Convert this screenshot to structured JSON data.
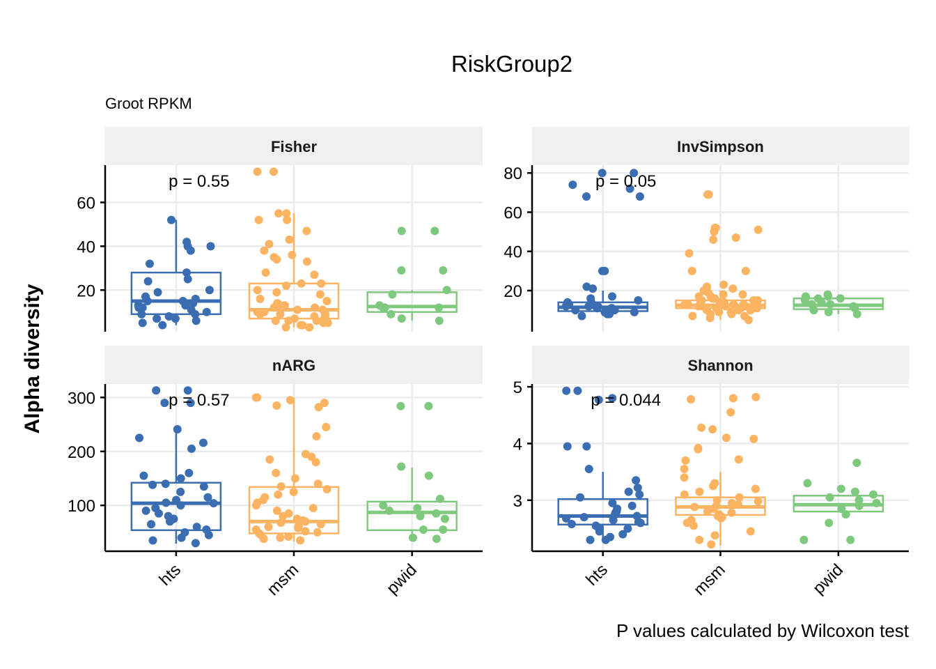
{
  "chart_data": {
    "type": "boxplot",
    "title": "RiskGroup2",
    "subtitle": "Groot RPKM",
    "caption": "P values calculated by Wilcoxon test",
    "ylabel": "Alpha diversity",
    "groups": [
      "hts",
      "msm",
      "pwid"
    ],
    "colors": {
      "hts": "#3b6db2",
      "msm": "#fdb462",
      "pwid": "#7fc97f"
    },
    "grid": true,
    "panels": [
      {
        "name": "Fisher",
        "pvalue_label": "p = 0.55",
        "ylim": [
          1,
          77
        ],
        "yticks": [
          20,
          40,
          60
        ],
        "boxes": {
          "hts": {
            "q1": 9,
            "median": 15,
            "q3": 28,
            "whisker_low": 4,
            "whisker_high": 52
          },
          "msm": {
            "q1": 7,
            "median": 11,
            "q3": 23,
            "whisker_low": 3,
            "whisker_high": 55
          },
          "pwid": {
            "q1": 10,
            "median": 12.5,
            "q3": 19,
            "whisker_low": 6,
            "whisker_high": 20
          }
        },
        "points": {
          "hts": [
            52,
            42,
            40,
            40,
            38,
            32,
            28,
            25,
            24,
            20,
            19,
            17,
            16,
            15,
            14,
            13,
            12,
            11,
            10,
            9,
            8,
            7,
            6,
            5,
            4,
            12,
            15,
            13,
            9,
            7
          ],
          "msm": [
            74,
            74,
            55,
            55,
            52,
            52,
            47,
            43,
            41,
            38,
            36,
            35,
            34,
            33,
            28,
            27,
            23,
            23,
            22,
            20,
            19,
            18,
            16,
            15,
            14,
            13,
            12,
            11,
            10,
            10,
            9,
            9,
            8,
            8,
            7,
            7,
            6,
            6,
            5,
            5,
            4,
            4,
            3,
            3,
            11,
            12,
            13,
            9,
            8,
            6
          ],
          "pwid": [
            47,
            47,
            29,
            29,
            20,
            18,
            13,
            12,
            12,
            12,
            9,
            7,
            6
          ]
        }
      },
      {
        "name": "InvSimpson",
        "pvalue_label": "p = 0.05",
        "ylim": [
          -1,
          84
        ],
        "yticks": [
          20,
          40,
          60,
          80
        ],
        "boxes": {
          "hts": {
            "q1": 9.5,
            "median": 11.5,
            "q3": 14,
            "whisker_low": 7,
            "whisker_high": 20
          },
          "msm": {
            "q1": 11,
            "median": 12.5,
            "q3": 15,
            "whisker_low": 5,
            "whisker_high": 20
          },
          "pwid": {
            "q1": 10.5,
            "median": 12.5,
            "q3": 16,
            "whisker_low": 8,
            "whisker_high": 18
          }
        },
        "points": {
          "hts": [
            80,
            80,
            72,
            74,
            68,
            68,
            30,
            30,
            22,
            21,
            17,
            16,
            15,
            14,
            14,
            13,
            13,
            12,
            12,
            12,
            11,
            11,
            11,
            10,
            10,
            10,
            9,
            9,
            9,
            8,
            8,
            7
          ],
          "msm": [
            69,
            69,
            52,
            52,
            51,
            50,
            47,
            46,
            39,
            30,
            30,
            23,
            22,
            21,
            20,
            19,
            18,
            18,
            17,
            17,
            16,
            16,
            15,
            15,
            15,
            14,
            14,
            14,
            13,
            13,
            13,
            13,
            12,
            12,
            12,
            12,
            11,
            11,
            11,
            10,
            10,
            10,
            9,
            9,
            8,
            8,
            7,
            7,
            6,
            5
          ],
          "pwid": [
            18,
            17,
            17,
            16,
            16,
            15,
            14,
            13,
            13,
            12,
            11,
            10,
            9,
            8
          ]
        }
      },
      {
        "name": "nARG",
        "pvalue_label": "p = 0.57",
        "ylim": [
          15,
          325
        ],
        "yticks": [
          100,
          200,
          300
        ],
        "boxes": {
          "hts": {
            "q1": 54,
            "median": 104,
            "q3": 142,
            "whisker_low": 29,
            "whisker_high": 240
          },
          "msm": {
            "q1": 48,
            "median": 70,
            "q3": 134,
            "whisker_low": 33,
            "whisker_high": 300
          },
          "pwid": {
            "q1": 54,
            "median": 87,
            "q3": 107,
            "whisker_low": 35,
            "whisker_high": 170
          }
        },
        "points": {
          "hts": [
            313,
            313,
            290,
            290,
            241,
            225,
            216,
            205,
            160,
            155,
            150,
            140,
            138,
            135,
            125,
            115,
            110,
            105,
            104,
            100,
            95,
            90,
            85,
            80,
            75,
            70,
            65,
            60,
            55,
            50,
            45,
            40,
            35,
            30
          ],
          "msm": [
            300,
            300,
            295,
            290,
            285,
            282,
            245,
            228,
            195,
            190,
            185,
            180,
            160,
            150,
            140,
            135,
            130,
            125,
            120,
            115,
            110,
            105,
            100,
            95,
            90,
            85,
            80,
            75,
            72,
            70,
            68,
            65,
            62,
            60,
            58,
            55,
            52,
            50,
            48,
            45,
            42,
            40,
            38,
            35
          ],
          "pwid": [
            284,
            284,
            172,
            155,
            112,
            100,
            95,
            90,
            85,
            80,
            75,
            55,
            55,
            40,
            38
          ]
        }
      },
      {
        "name": "Shannon",
        "pvalue_label": "p = 0.044",
        "ylim": [
          2.1,
          5.05
        ],
        "yticks": [
          3,
          4,
          5
        ],
        "boxes": {
          "hts": {
            "q1": 2.57,
            "median": 2.72,
            "q3": 3.02,
            "whisker_low": 2.3,
            "whisker_high": 3.5
          },
          "msm": {
            "q1": 2.74,
            "median": 2.88,
            "q3": 3.05,
            "whisker_low": 2.2,
            "whisker_high": 3.5
          },
          "pwid": {
            "q1": 2.8,
            "median": 2.92,
            "q3": 3.08,
            "whisker_low": 2.8,
            "whisker_high": 3.1
          }
        },
        "points": {
          "hts": [
            4.93,
            4.93,
            4.8,
            4.77,
            3.95,
            3.95,
            3.55,
            3.35,
            3.22,
            3.15,
            3.1,
            3.05,
            2.95,
            2.9,
            2.85,
            2.8,
            2.78,
            2.75,
            2.72,
            2.7,
            2.68,
            2.65,
            2.62,
            2.6,
            2.58,
            2.55,
            2.52,
            2.5,
            2.45,
            2.4,
            2.35,
            2.3,
            2.3
          ],
          "msm": [
            4.82,
            4.8,
            4.78,
            4.55,
            4.28,
            4.25,
            4.1,
            4.08,
            3.92,
            3.9,
            3.72,
            3.7,
            3.55,
            3.4,
            3.3,
            3.25,
            3.2,
            3.15,
            3.1,
            3.05,
            3.0,
            2.98,
            2.95,
            2.92,
            2.9,
            2.88,
            2.85,
            2.82,
            2.8,
            2.78,
            2.75,
            2.72,
            2.7,
            2.68,
            2.65,
            2.6,
            2.55,
            2.45,
            2.38,
            2.3,
            2.22
          ],
          "pwid": [
            3.66,
            3.3,
            3.2,
            3.15,
            3.1,
            3.05,
            3.0,
            2.95,
            2.9,
            2.85,
            2.75,
            2.6,
            2.3,
            2.3
          ]
        }
      }
    ]
  }
}
